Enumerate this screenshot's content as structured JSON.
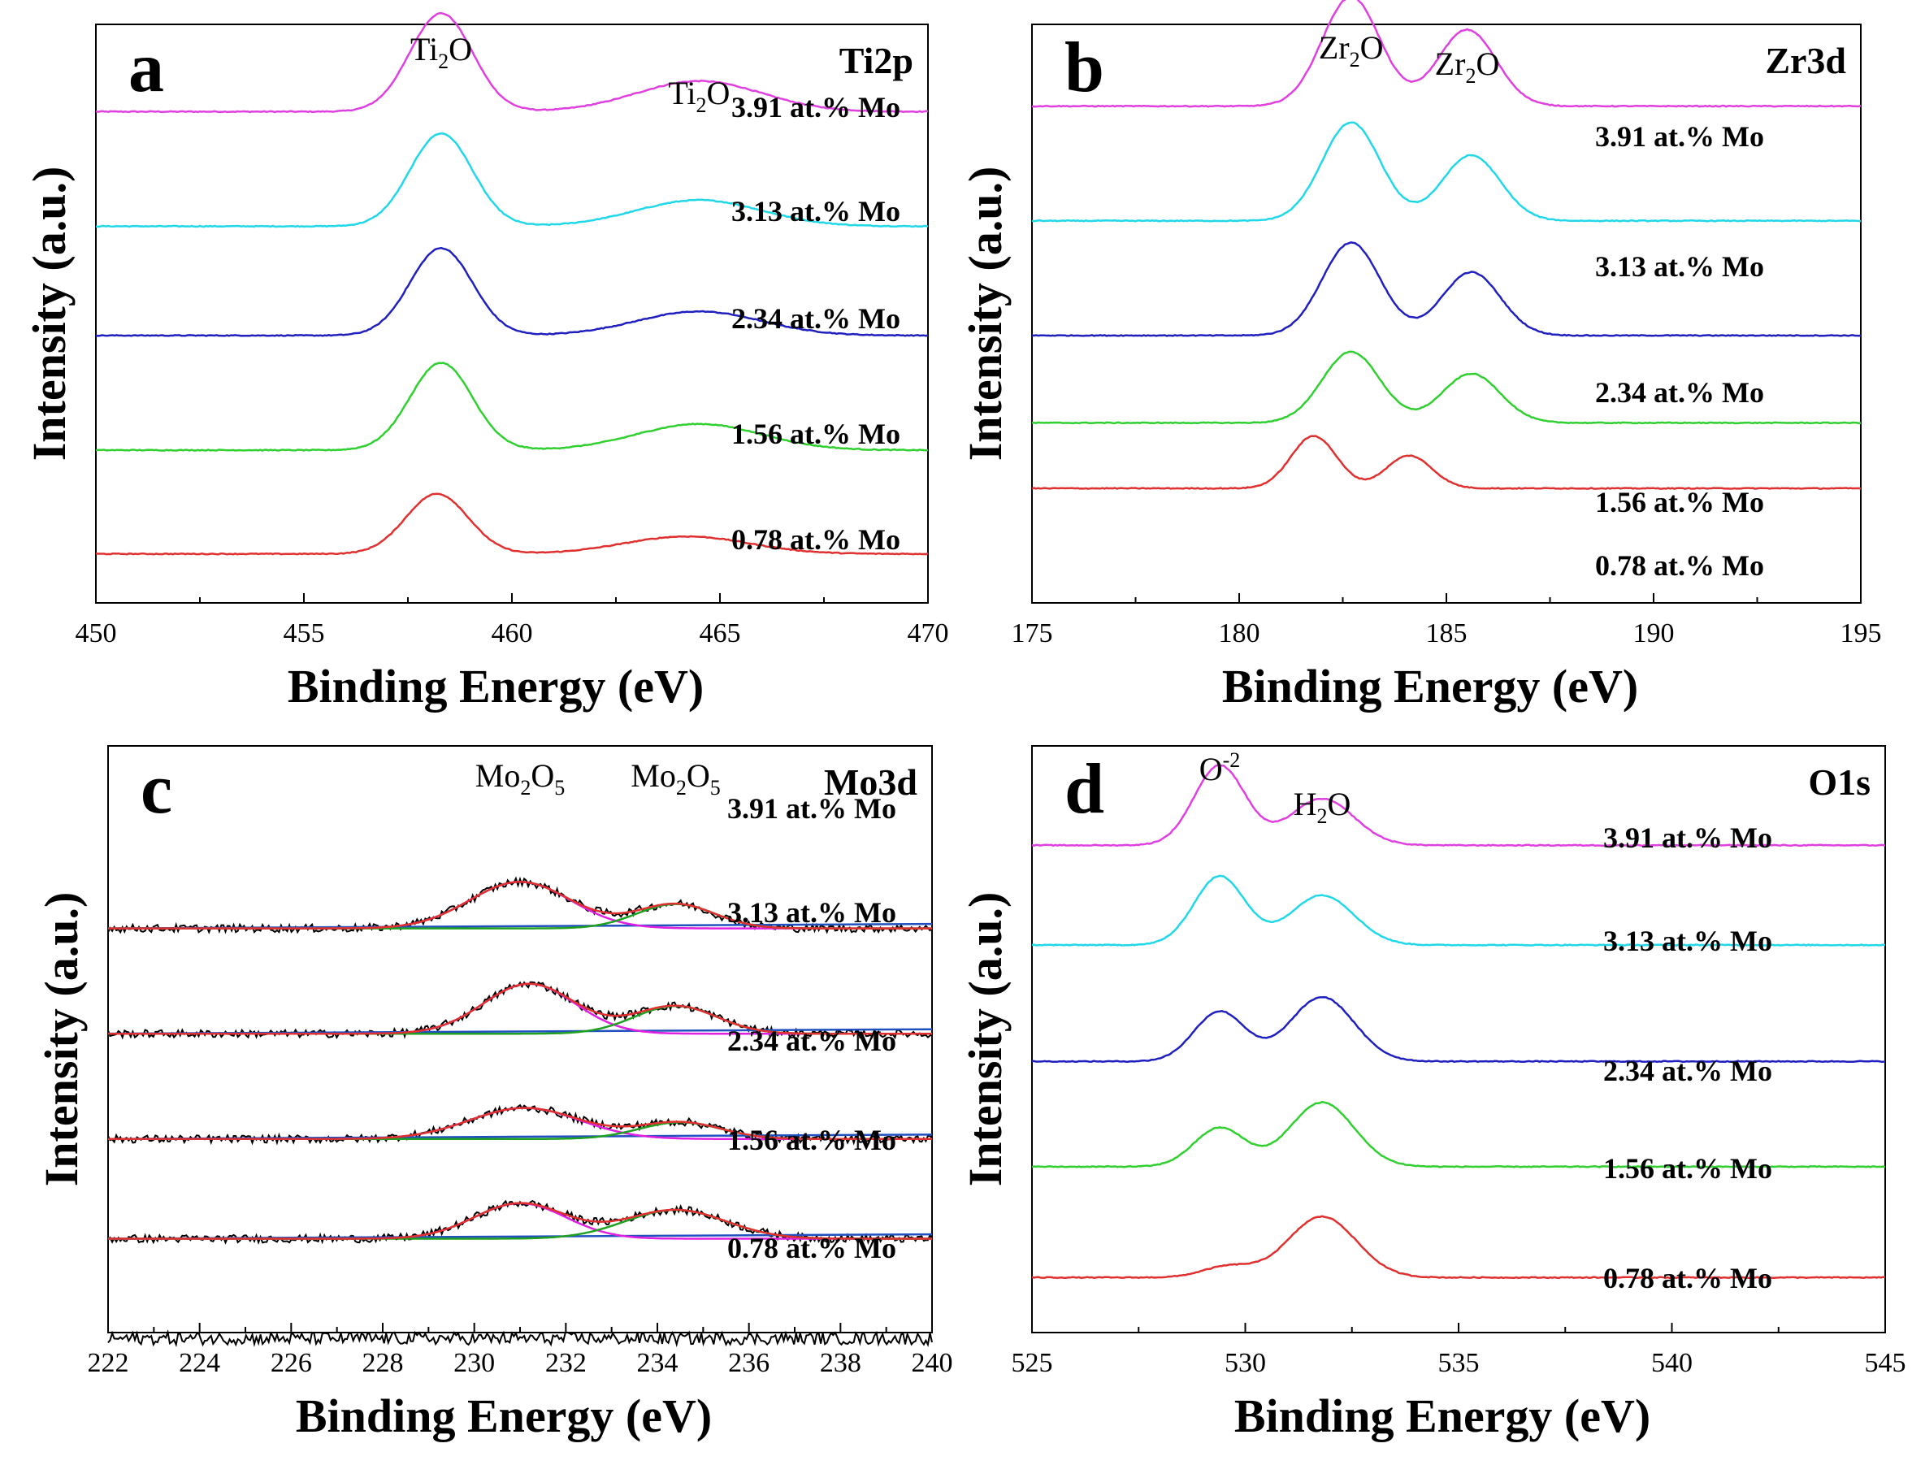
{
  "chart_data": [
    {
      "type": "line",
      "panel": "a",
      "element": "Ti2p",
      "xlabel": "Binding Energy (eV)",
      "ylabel": "Intensity (a.u.)",
      "xlim": [
        450,
        470
      ],
      "xticks": [
        "450",
        "455",
        "460",
        "465",
        "470"
      ],
      "peak_labels": [
        {
          "base": "Ti",
          "sub": "2",
          "tail": "O",
          "x": 458.3
        },
        {
          "base": "Ti",
          "sub": "2",
          "tail": "O",
          "x": 464.5
        }
      ],
      "series": [
        {
          "name": "3.91 at.% Mo",
          "color": "#e040e0",
          "baseline": 4.35,
          "peaks": [
            [
              458.3,
              0.9,
              0.75
            ],
            [
              464.5,
              0.28,
              1.5
            ]
          ]
        },
        {
          "name": "3.13 at.% Mo",
          "color": "#20d8e8",
          "baseline": 3.3,
          "peaks": [
            [
              458.3,
              0.85,
              0.75
            ],
            [
              464.5,
              0.24,
              1.5
            ]
          ]
        },
        {
          "name": "2.34 at.% Mo",
          "color": "#2020c0",
          "baseline": 2.3,
          "peaks": [
            [
              458.3,
              0.8,
              0.75
            ],
            [
              464.5,
              0.22,
              1.5
            ]
          ]
        },
        {
          "name": "1.56 at.% Mo",
          "color": "#30d030",
          "baseline": 1.25,
          "peaks": [
            [
              458.3,
              0.8,
              0.75
            ],
            [
              464.5,
              0.24,
              1.5
            ]
          ]
        },
        {
          "name": "0.78 at.% Mo",
          "color": "#e03030",
          "baseline": 0.3,
          "peaks": [
            [
              458.2,
              0.55,
              0.75
            ],
            [
              464.2,
              0.16,
              1.5
            ]
          ]
        }
      ]
    },
    {
      "type": "line",
      "panel": "b",
      "element": "Zr3d",
      "xlabel": "Binding Energy (eV)",
      "ylabel": "Intensity (a.u.)",
      "xlim": [
        175,
        195
      ],
      "xticks": [
        "175",
        "180",
        "185",
        "190",
        "195"
      ],
      "peak_labels": [
        {
          "base": "Zr",
          "sub": "2",
          "tail": "O",
          "x": 182.7
        },
        {
          "base": "Zr",
          "sub": "2",
          "tail": "O",
          "x": 185.5
        }
      ],
      "series": [
        {
          "name": "3.91 at.% Mo",
          "color": "#e040e0",
          "baseline": 4.4,
          "peaks": [
            [
              182.7,
              1.0,
              0.7
            ],
            [
              185.5,
              0.7,
              0.7
            ]
          ]
        },
        {
          "name": "3.13 at.% Mo",
          "color": "#20d8e8",
          "baseline": 3.35,
          "peaks": [
            [
              182.7,
              0.9,
              0.7
            ],
            [
              185.6,
              0.6,
              0.7
            ]
          ]
        },
        {
          "name": "2.34 at.% Mo",
          "color": "#2020c0",
          "baseline": 2.3,
          "peaks": [
            [
              182.7,
              0.85,
              0.7
            ],
            [
              185.6,
              0.58,
              0.7
            ]
          ]
        },
        {
          "name": "1.56 at.% Mo",
          "color": "#30d030",
          "baseline": 1.5,
          "peaks": [
            [
              182.7,
              0.65,
              0.7
            ],
            [
              185.6,
              0.45,
              0.7
            ]
          ]
        },
        {
          "name": "0.78 at.% Mo",
          "color": "#e03030",
          "baseline": 0.9,
          "peaks": [
            [
              181.8,
              0.48,
              0.55
            ],
            [
              184.1,
              0.3,
              0.55
            ]
          ]
        }
      ]
    },
    {
      "type": "line",
      "panel": "c",
      "element": "Mo3d",
      "xlabel": "Binding Energy (eV)",
      "ylabel": "Intensity (a.u.)",
      "xlim": [
        222,
        240
      ],
      "xticks": [
        "222",
        "224",
        "226",
        "228",
        "230",
        "232",
        "234",
        "236",
        "238",
        "240"
      ],
      "peak_labels": [
        {
          "base": "Mo",
          "sub": "2",
          "tail": "O",
          "sub2": "5",
          "x": 231.0
        },
        {
          "base": "Mo",
          "sub": "2",
          "tail": "O",
          "sub2": "5",
          "x": 234.4
        }
      ],
      "fit_colors": {
        "raw": "#000000",
        "envelope": "#e03030",
        "component1": "#e020e0",
        "component2": "#20a020",
        "background": "#2050c0"
      },
      "series": [
        {
          "name": "3.91 at.% Mo",
          "baseline": 3.5,
          "fitted": true,
          "peaks": [
            [
              231.0,
              0.42,
              1.1
            ],
            [
              234.4,
              0.22,
              0.85
            ]
          ]
        },
        {
          "name": "3.13 at.% Mo",
          "baseline": 2.55,
          "fitted": true,
          "peaks": [
            [
              231.2,
              0.45,
              1.0
            ],
            [
              234.4,
              0.25,
              0.9
            ]
          ]
        },
        {
          "name": "2.34 at.% Mo",
          "baseline": 1.6,
          "fitted": true,
          "peaks": [
            [
              231.1,
              0.28,
              1.2
            ],
            [
              234.5,
              0.15,
              0.9
            ]
          ]
        },
        {
          "name": "1.56 at.% Mo",
          "baseline": 0.7,
          "fitted": true,
          "peaks": [
            [
              231.0,
              0.32,
              1.0
            ],
            [
              234.4,
              0.26,
              1.1
            ]
          ]
        },
        {
          "name": "0.78 at.% Mo",
          "baseline": -0.2,
          "fitted": false,
          "peaks": []
        }
      ]
    },
    {
      "type": "line",
      "panel": "d",
      "element": "O1s",
      "xlabel": "Binding Energy (eV)",
      "ylabel": "Intensity (a.u.)",
      "xlim": [
        525,
        545
      ],
      "xticks": [
        "525",
        "530",
        "535",
        "540",
        "545"
      ],
      "peak_labels": [
        {
          "base": "O",
          "sup": "-2",
          "x": 529.4
        },
        {
          "base": "H",
          "sub": "2",
          "tail": "O",
          "x": 531.8
        }
      ],
      "series": [
        {
          "name": "3.91 at.% Mo",
          "color": "#e040e0",
          "baseline": 4.25,
          "peaks": [
            [
              529.4,
              0.72,
              0.6
            ],
            [
              531.8,
              0.42,
              0.75
            ]
          ]
        },
        {
          "name": "3.13 at.% Mo",
          "color": "#20d8e8",
          "baseline": 3.35,
          "peaks": [
            [
              529.4,
              0.62,
              0.6
            ],
            [
              531.8,
              0.45,
              0.75
            ]
          ]
        },
        {
          "name": "2.34 at.% Mo",
          "color": "#2020c0",
          "baseline": 2.3,
          "peaks": [
            [
              529.4,
              0.45,
              0.6
            ],
            [
              531.8,
              0.58,
              0.75
            ]
          ]
        },
        {
          "name": "1.56 at.% Mo",
          "color": "#30d030",
          "baseline": 1.35,
          "peaks": [
            [
              529.4,
              0.35,
              0.6
            ],
            [
              531.8,
              0.58,
              0.75
            ]
          ]
        },
        {
          "name": "0.78 at.% Mo",
          "color": "#e03030",
          "baseline": 0.35,
          "peaks": [
            [
              529.6,
              0.1,
              0.6
            ],
            [
              531.8,
              0.55,
              0.8
            ]
          ]
        }
      ]
    }
  ]
}
